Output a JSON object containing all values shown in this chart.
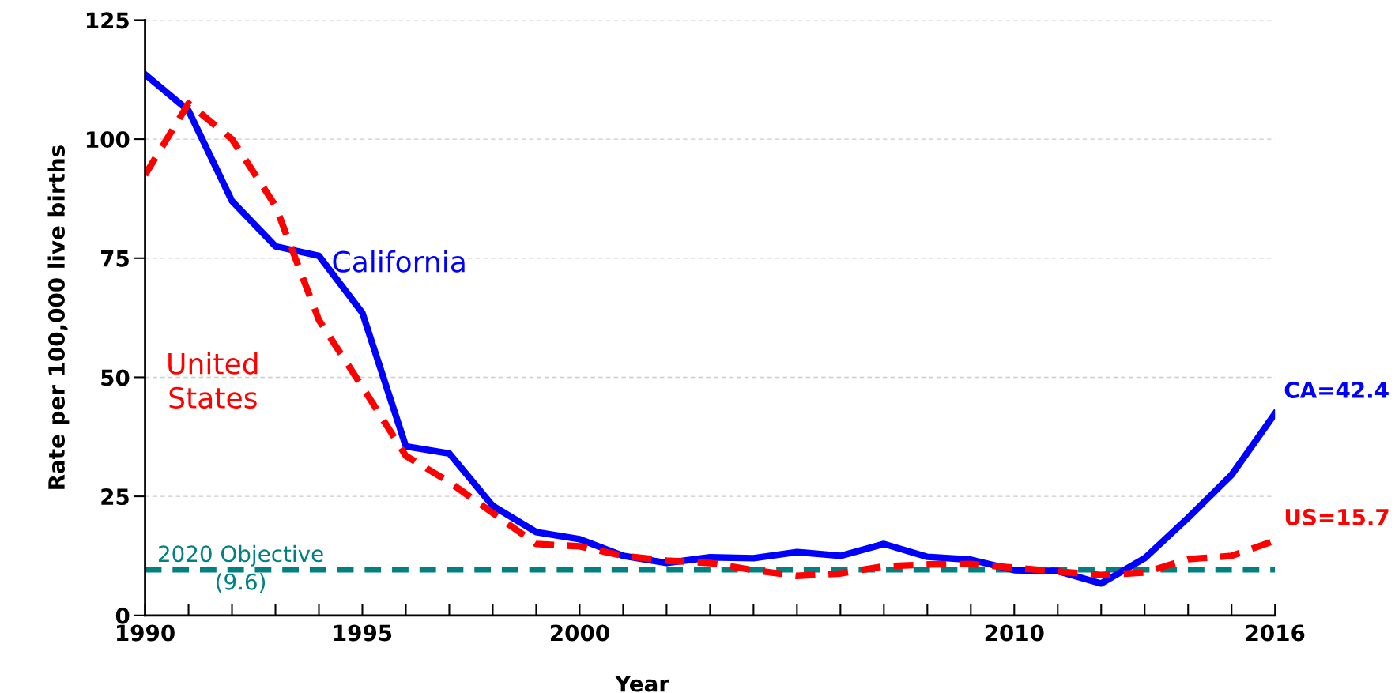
{
  "chart_data": {
    "type": "line",
    "xlabel": "Year",
    "ylabel": "Rate per 100,000 live births",
    "x": [
      1990,
      1991,
      1992,
      1993,
      1994,
      1995,
      1996,
      1997,
      1998,
      1999,
      2000,
      2001,
      2002,
      2003,
      2004,
      2005,
      2006,
      2007,
      2008,
      2009,
      2010,
      2011,
      2012,
      2013,
      2014,
      2015,
      2016
    ],
    "series": [
      {
        "name": "California",
        "color": "#0000ff",
        "line_style": "solid",
        "values": [
          113.6,
          106,
          87,
          77.5,
          75.5,
          63.5,
          35.5,
          34,
          23,
          17.5,
          16,
          12.5,
          11,
          12.2,
          12,
          13.3,
          12.5,
          15,
          12.3,
          11.7,
          9.5,
          9.3,
          6.7,
          12,
          20.5,
          29.5,
          42.4
        ]
      },
      {
        "name": "United States",
        "color": "#ff0000",
        "line_style": "dashed",
        "values": [
          92.5,
          107.5,
          100,
          86,
          62,
          48,
          33.5,
          28,
          21.5,
          15,
          14.5,
          12.5,
          11.5,
          11,
          9.5,
          8.3,
          8.8,
          10.3,
          10.7,
          10.8,
          10,
          9.2,
          8.5,
          9,
          11.8,
          12.5,
          15.7
        ]
      }
    ],
    "xlim": [
      1990,
      2016
    ],
    "xticks": [
      1990,
      {
        "value": 1991,
        "label": null
      },
      {
        "value": 1992,
        "label": null
      },
      {
        "value": 1993,
        "label": null
      },
      {
        "value": 1994,
        "label": null
      },
      1995,
      {
        "value": 1996,
        "label": null
      },
      {
        "value": 1997,
        "label": null
      },
      {
        "value": 1998,
        "label": null
      },
      {
        "value": 1999,
        "label": null
      },
      2000,
      {
        "value": 2001,
        "label": null
      },
      {
        "value": 2002,
        "label": null
      },
      {
        "value": 2003,
        "label": null
      },
      {
        "value": 2004,
        "label": null
      },
      {
        "value": 2005,
        "label": null
      },
      {
        "value": 2006,
        "label": null
      },
      {
        "value": 2007,
        "label": null
      },
      {
        "value": 2008,
        "label": null
      },
      {
        "value": 2009,
        "label": null
      },
      2010,
      {
        "value": 2011,
        "label": null
      },
      {
        "value": 2012,
        "label": null
      },
      {
        "value": 2013,
        "label": null
      },
      {
        "value": 2014,
        "label": null
      },
      {
        "value": 2015,
        "label": null
      },
      2016
    ],
    "ylim": [
      0,
      125
    ],
    "yticks": [
      0,
      25,
      50,
      75,
      100,
      125
    ],
    "grid": "y",
    "legend": false,
    "ref_lines": [
      {
        "axis": "y",
        "value": 9.6,
        "label": "2020 Objective\n(9.6)",
        "color": "#008080",
        "line_style": "dashed"
      }
    ],
    "annotations": [
      {
        "text": "CA=42.4",
        "x": 2016,
        "y": 42.4
      },
      {
        "text": "US=15.7",
        "x": 2016,
        "y": 15.7
      }
    ]
  }
}
